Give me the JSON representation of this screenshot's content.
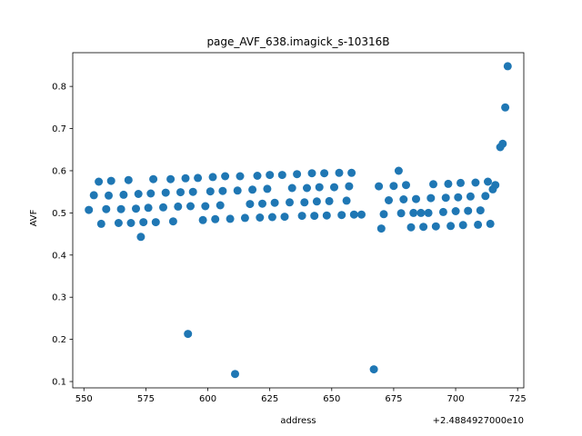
{
  "chart_data": {
    "type": "scatter",
    "title": "page_AVF_638.imagick_s-10316B",
    "xlabel": "address",
    "ylabel": "AVF",
    "x_offset_text": "+2.4884927000e10",
    "xlim": [
      545.5,
      727.5
    ],
    "ylim": [
      0.085,
      0.88
    ],
    "x_ticks": [
      550,
      575,
      600,
      625,
      650,
      675,
      700,
      725
    ],
    "y_ticks": [
      0.1,
      0.2,
      0.3,
      0.4,
      0.5,
      0.6,
      0.7,
      0.8
    ],
    "grid": false,
    "marker_color": "#1f77b4",
    "points": [
      [
        552,
        0.507
      ],
      [
        554,
        0.542
      ],
      [
        556,
        0.574
      ],
      [
        557,
        0.474
      ],
      [
        559,
        0.509
      ],
      [
        560,
        0.541
      ],
      [
        561,
        0.576
      ],
      [
        564,
        0.476
      ],
      [
        565,
        0.509
      ],
      [
        566,
        0.543
      ],
      [
        568,
        0.578
      ],
      [
        569,
        0.476
      ],
      [
        571,
        0.51
      ],
      [
        572,
        0.545
      ],
      [
        573,
        0.443
      ],
      [
        574,
        0.478
      ],
      [
        576,
        0.512
      ],
      [
        577,
        0.546
      ],
      [
        578,
        0.58
      ],
      [
        579,
        0.478
      ],
      [
        582,
        0.513
      ],
      [
        583,
        0.548
      ],
      [
        585,
        0.58
      ],
      [
        586,
        0.48
      ],
      [
        588,
        0.515
      ],
      [
        589,
        0.549
      ],
      [
        591,
        0.582
      ],
      [
        592,
        0.213
      ],
      [
        593,
        0.516
      ],
      [
        594,
        0.55
      ],
      [
        596,
        0.583
      ],
      [
        598,
        0.483
      ],
      [
        599,
        0.516
      ],
      [
        601,
        0.551
      ],
      [
        602,
        0.585
      ],
      [
        603,
        0.485
      ],
      [
        605,
        0.518
      ],
      [
        606,
        0.552
      ],
      [
        607,
        0.587
      ],
      [
        609,
        0.486
      ],
      [
        611,
        0.118
      ],
      [
        612,
        0.553
      ],
      [
        613,
        0.587
      ],
      [
        615,
        0.488
      ],
      [
        617,
        0.521
      ],
      [
        618,
        0.555
      ],
      [
        620,
        0.588
      ],
      [
        621,
        0.489
      ],
      [
        622,
        0.522
      ],
      [
        624,
        0.557
      ],
      [
        625,
        0.59
      ],
      [
        626,
        0.49
      ],
      [
        627,
        0.524
      ],
      [
        630,
        0.59
      ],
      [
        631,
        0.491
      ],
      [
        633,
        0.525
      ],
      [
        634,
        0.559
      ],
      [
        636,
        0.592
      ],
      [
        638,
        0.493
      ],
      [
        639,
        0.525
      ],
      [
        640,
        0.559
      ],
      [
        642,
        0.594
      ],
      [
        643,
        0.493
      ],
      [
        644,
        0.527
      ],
      [
        645,
        0.561
      ],
      [
        647,
        0.594
      ],
      [
        648,
        0.494
      ],
      [
        649,
        0.528
      ],
      [
        651,
        0.561
      ],
      [
        653,
        0.595
      ],
      [
        654,
        0.495
      ],
      [
        656,
        0.529
      ],
      [
        657,
        0.563
      ],
      [
        658,
        0.595
      ],
      [
        659,
        0.496
      ],
      [
        662,
        0.496
      ],
      [
        667,
        0.129
      ],
      [
        669,
        0.563
      ],
      [
        670,
        0.463
      ],
      [
        671,
        0.497
      ],
      [
        673,
        0.53
      ],
      [
        675,
        0.564
      ],
      [
        677,
        0.6
      ],
      [
        678,
        0.499
      ],
      [
        679,
        0.532
      ],
      [
        680,
        0.566
      ],
      [
        682,
        0.466
      ],
      [
        683,
        0.5
      ],
      [
        684,
        0.533
      ],
      [
        686,
        0.5
      ],
      [
        687,
        0.467
      ],
      [
        689,
        0.5
      ],
      [
        690,
        0.535
      ],
      [
        691,
        0.568
      ],
      [
        692,
        0.468
      ],
      [
        695,
        0.502
      ],
      [
        696,
        0.536
      ],
      [
        697,
        0.569
      ],
      [
        698,
        0.469
      ],
      [
        700,
        0.504
      ],
      [
        701,
        0.537
      ],
      [
        702,
        0.571
      ],
      [
        703,
        0.471
      ],
      [
        705,
        0.505
      ],
      [
        706,
        0.539
      ],
      [
        708,
        0.572
      ],
      [
        709,
        0.472
      ],
      [
        710,
        0.506
      ],
      [
        712,
        0.54
      ],
      [
        713,
        0.574
      ],
      [
        714,
        0.474
      ],
      [
        715,
        0.556
      ],
      [
        716,
        0.566
      ],
      [
        718,
        0.656
      ],
      [
        719,
        0.664
      ],
      [
        720,
        0.75
      ],
      [
        721,
        0.848
      ]
    ]
  }
}
